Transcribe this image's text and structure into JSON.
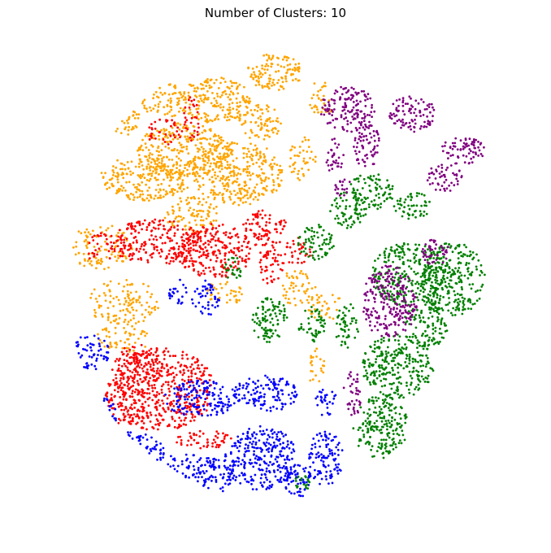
{
  "chart_data": {
    "type": "scatter",
    "title": "Number of Clusters: 10",
    "xlabel": "",
    "ylabel": "",
    "grid": false,
    "axes_visible": false,
    "legend": "none",
    "series": [
      {
        "color": "#ffa500",
        "regions": [
          {
            "x": 0.08,
            "y": 0.56,
            "rx": 0.07,
            "ry": 0.05,
            "density": 0.55
          },
          {
            "x": 0.13,
            "y": 0.44,
            "rx": 0.08,
            "ry": 0.05,
            "density": 0.6
          },
          {
            "x": 0.18,
            "y": 0.71,
            "rx": 0.1,
            "ry": 0.05,
            "density": 0.95
          },
          {
            "x": 0.12,
            "y": 0.84,
            "rx": 0.05,
            "ry": 0.04,
            "density": 0.7
          },
          {
            "x": 0.26,
            "y": 0.77,
            "rx": 0.1,
            "ry": 0.06,
            "density": 1.0
          },
          {
            "x": 0.33,
            "y": 0.88,
            "rx": 0.08,
            "ry": 0.05,
            "density": 0.95
          },
          {
            "x": 0.22,
            "y": 0.88,
            "rx": 0.05,
            "ry": 0.04,
            "density": 0.6
          },
          {
            "x": 0.46,
            "y": 0.94,
            "rx": 0.06,
            "ry": 0.04,
            "density": 0.95
          },
          {
            "x": 0.38,
            "y": 0.72,
            "rx": 0.1,
            "ry": 0.07,
            "density": 1.0
          },
          {
            "x": 0.43,
            "y": 0.83,
            "rx": 0.05,
            "ry": 0.04,
            "density": 0.7
          },
          {
            "x": 0.28,
            "y": 0.63,
            "rx": 0.06,
            "ry": 0.04,
            "density": 0.75
          },
          {
            "x": 0.35,
            "y": 0.46,
            "rx": 0.04,
            "ry": 0.03,
            "density": 0.5
          },
          {
            "x": 0.51,
            "y": 0.47,
            "rx": 0.04,
            "ry": 0.04,
            "density": 0.5
          },
          {
            "x": 0.57,
            "y": 0.43,
            "rx": 0.04,
            "ry": 0.03,
            "density": 0.4
          },
          {
            "x": 0.13,
            "y": 0.36,
            "rx": 0.06,
            "ry": 0.03,
            "density": 0.5
          },
          {
            "x": 0.52,
            "y": 0.75,
            "rx": 0.03,
            "ry": 0.05,
            "density": 0.45
          },
          {
            "x": 0.56,
            "y": 0.88,
            "rx": 0.03,
            "ry": 0.04,
            "density": 0.35
          },
          {
            "x": 0.55,
            "y": 0.3,
            "rx": 0.02,
            "ry": 0.04,
            "density": 0.3
          }
        ]
      },
      {
        "color": "#ff0000",
        "regions": [
          {
            "x": 0.2,
            "y": 0.57,
            "rx": 0.1,
            "ry": 0.05,
            "density": 0.95
          },
          {
            "x": 0.33,
            "y": 0.55,
            "rx": 0.08,
            "ry": 0.06,
            "density": 1.0
          },
          {
            "x": 0.21,
            "y": 0.25,
            "rx": 0.12,
            "ry": 0.09,
            "density": 1.0
          },
          {
            "x": 0.16,
            "y": 0.29,
            "rx": 0.05,
            "ry": 0.06,
            "density": 0.7
          },
          {
            "x": 0.44,
            "y": 0.6,
            "rx": 0.05,
            "ry": 0.04,
            "density": 0.8
          },
          {
            "x": 0.45,
            "y": 0.52,
            "rx": 0.03,
            "ry": 0.04,
            "density": 0.7
          },
          {
            "x": 0.31,
            "y": 0.14,
            "rx": 0.07,
            "ry": 0.02,
            "density": 0.6
          },
          {
            "x": 0.22,
            "y": 0.81,
            "rx": 0.04,
            "ry": 0.03,
            "density": 0.45
          },
          {
            "x": 0.28,
            "y": 0.84,
            "rx": 0.02,
            "ry": 0.05,
            "density": 0.4
          },
          {
            "x": 0.51,
            "y": 0.55,
            "rx": 0.03,
            "ry": 0.03,
            "density": 0.45
          },
          {
            "x": 0.12,
            "y": 0.19,
            "rx": 0.04,
            "ry": 0.03,
            "density": 0.4
          },
          {
            "x": 0.08,
            "y": 0.56,
            "rx": 0.04,
            "ry": 0.03,
            "density": 0.3
          }
        ]
      },
      {
        "color": "#0000ff",
        "regions": [
          {
            "x": 0.14,
            "y": 0.11,
            "rx": 0.08,
            "ry": 0.05,
            "density": 0.9
          },
          {
            "x": 0.27,
            "y": 0.06,
            "rx": 0.1,
            "ry": 0.05,
            "density": 1.0
          },
          {
            "x": 0.43,
            "y": 0.1,
            "rx": 0.08,
            "ry": 0.07,
            "density": 1.0
          },
          {
            "x": 0.51,
            "y": 0.05,
            "rx": 0.03,
            "ry": 0.04,
            "density": 0.8
          },
          {
            "x": 0.57,
            "y": 0.1,
            "rx": 0.04,
            "ry": 0.06,
            "density": 0.85
          },
          {
            "x": 0.3,
            "y": 0.23,
            "rx": 0.08,
            "ry": 0.04,
            "density": 0.95
          },
          {
            "x": 0.44,
            "y": 0.24,
            "rx": 0.07,
            "ry": 0.04,
            "density": 0.9
          },
          {
            "x": 0.06,
            "y": 0.33,
            "rx": 0.04,
            "ry": 0.04,
            "density": 0.7
          },
          {
            "x": 0.09,
            "y": 0.2,
            "rx": 0.03,
            "ry": 0.03,
            "density": 0.5
          },
          {
            "x": 0.31,
            "y": 0.45,
            "rx": 0.03,
            "ry": 0.04,
            "density": 0.65
          },
          {
            "x": 0.25,
            "y": 0.46,
            "rx": 0.02,
            "ry": 0.03,
            "density": 0.4
          },
          {
            "x": 0.57,
            "y": 0.22,
            "rx": 0.03,
            "ry": 0.03,
            "density": 0.4
          }
        ]
      },
      {
        "color": "#008000",
        "regions": [
          {
            "x": 0.75,
            "y": 0.5,
            "rx": 0.08,
            "ry": 0.07,
            "density": 1.0
          },
          {
            "x": 0.85,
            "y": 0.49,
            "rx": 0.07,
            "ry": 0.08,
            "density": 1.0
          },
          {
            "x": 0.73,
            "y": 0.3,
            "rx": 0.08,
            "ry": 0.07,
            "density": 1.0
          },
          {
            "x": 0.69,
            "y": 0.17,
            "rx": 0.06,
            "ry": 0.07,
            "density": 0.95
          },
          {
            "x": 0.79,
            "y": 0.39,
            "rx": 0.05,
            "ry": 0.05,
            "density": 0.8
          },
          {
            "x": 0.62,
            "y": 0.64,
            "rx": 0.04,
            "ry": 0.04,
            "density": 0.75
          },
          {
            "x": 0.67,
            "y": 0.68,
            "rx": 0.05,
            "ry": 0.04,
            "density": 0.8
          },
          {
            "x": 0.76,
            "y": 0.65,
            "rx": 0.04,
            "ry": 0.03,
            "density": 0.75
          },
          {
            "x": 0.55,
            "y": 0.57,
            "rx": 0.04,
            "ry": 0.04,
            "density": 0.75
          },
          {
            "x": 0.45,
            "y": 0.4,
            "rx": 0.04,
            "ry": 0.05,
            "density": 0.9
          },
          {
            "x": 0.54,
            "y": 0.39,
            "rx": 0.03,
            "ry": 0.04,
            "density": 0.7
          },
          {
            "x": 0.62,
            "y": 0.39,
            "rx": 0.03,
            "ry": 0.05,
            "density": 0.55
          },
          {
            "x": 0.52,
            "y": 0.05,
            "rx": 0.02,
            "ry": 0.02,
            "density": 0.35
          },
          {
            "x": 0.37,
            "y": 0.51,
            "rx": 0.02,
            "ry": 0.03,
            "density": 0.45
          }
        ]
      },
      {
        "color": "#800080",
        "regions": [
          {
            "x": 0.71,
            "y": 0.44,
            "rx": 0.06,
            "ry": 0.08,
            "density": 1.0
          },
          {
            "x": 0.81,
            "y": 0.55,
            "rx": 0.03,
            "ry": 0.03,
            "density": 0.8
          },
          {
            "x": 0.62,
            "y": 0.86,
            "rx": 0.06,
            "ry": 0.05,
            "density": 0.95
          },
          {
            "x": 0.76,
            "y": 0.85,
            "rx": 0.05,
            "ry": 0.04,
            "density": 0.9
          },
          {
            "x": 0.87,
            "y": 0.77,
            "rx": 0.05,
            "ry": 0.03,
            "density": 0.85
          },
          {
            "x": 0.83,
            "y": 0.71,
            "rx": 0.04,
            "ry": 0.03,
            "density": 0.7
          },
          {
            "x": 0.66,
            "y": 0.78,
            "rx": 0.03,
            "ry": 0.05,
            "density": 0.8
          },
          {
            "x": 0.59,
            "y": 0.76,
            "rx": 0.02,
            "ry": 0.04,
            "density": 0.5
          },
          {
            "x": 0.63,
            "y": 0.24,
            "rx": 0.02,
            "ry": 0.05,
            "density": 0.55
          },
          {
            "x": 0.61,
            "y": 0.69,
            "rx": 0.02,
            "ry": 0.02,
            "density": 0.4
          }
        ]
      }
    ]
  }
}
